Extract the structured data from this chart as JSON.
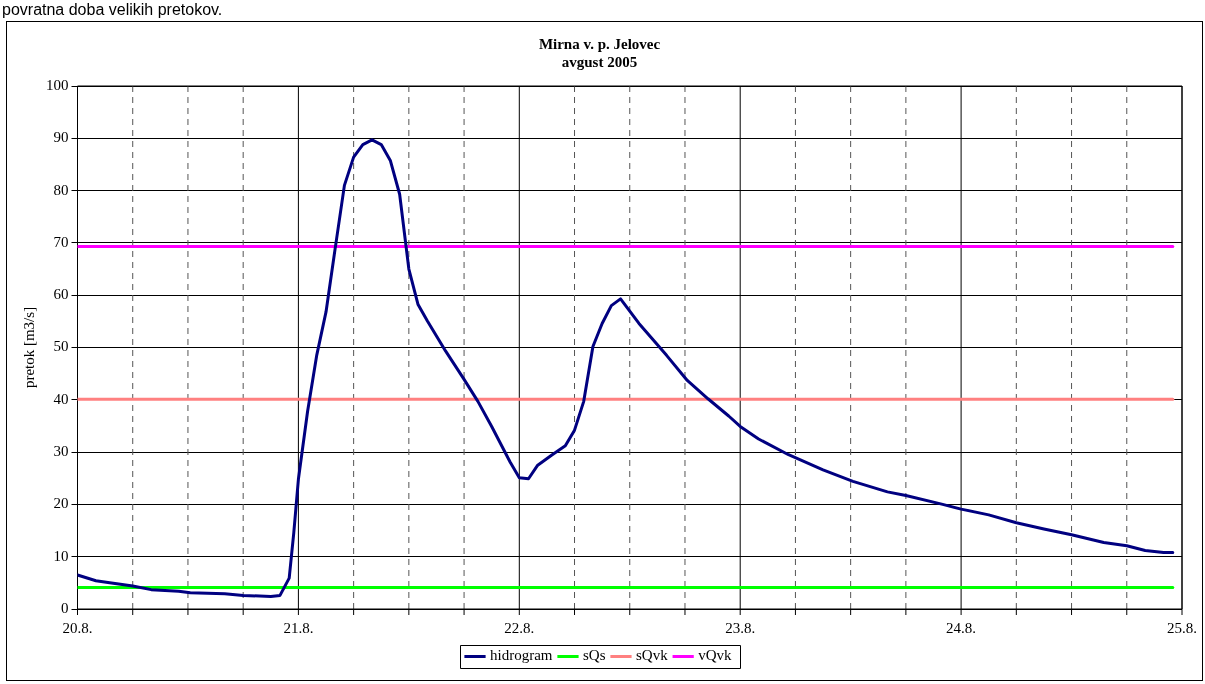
{
  "chart_data": {
    "type": "line",
    "title": "Mirna v. p. Jelovec",
    "subtitle": "avgust 2005",
    "ylabel": "pretok [m3/s]",
    "annotations": [
      "povratna doba velikih pretokov."
    ],
    "xlim": [
      "--08-20",
      "--08-25"
    ],
    "xticks": [
      {
        "value": "--08-20",
        "label": "20.8."
      },
      {
        "value": "--08-20T06:00",
        "label": null
      },
      {
        "value": "--08-20T12:00",
        "label": null
      },
      {
        "value": "--08-20T18:00",
        "label": null
      },
      {
        "value": "--08-21",
        "label": "21.8."
      },
      {
        "value": "--08-21T06:00",
        "label": null
      },
      {
        "value": "--08-21T12:00",
        "label": null
      },
      {
        "value": "--08-21T18:00",
        "label": null
      },
      {
        "value": "--08-22",
        "label": "22.8."
      },
      {
        "value": "--08-22T06:00",
        "label": null
      },
      {
        "value": "--08-22T12:00",
        "label": null
      },
      {
        "value": "--08-22T18:00",
        "label": null
      },
      {
        "value": "--08-23",
        "label": "23.8."
      },
      {
        "value": "--08-23T06:00",
        "label": null
      },
      {
        "value": "--08-23T12:00",
        "label": null
      },
      {
        "value": "--08-23T18:00",
        "label": null
      },
      {
        "value": "--08-24",
        "label": "24.8."
      },
      {
        "value": "--08-24T06:00",
        "label": null
      },
      {
        "value": "--08-24T12:00",
        "label": null
      },
      {
        "value": "--08-24T18:00",
        "label": null
      },
      {
        "value": "--08-25",
        "label": "25.8."
      }
    ],
    "ylim": [
      0,
      100
    ],
    "yticks": [
      0,
      10,
      20,
      30,
      40,
      50,
      60,
      70,
      80,
      90,
      100
    ],
    "grid": true,
    "legend": "bottom",
    "marker": "none",
    "line_style": "solid",
    "series": [
      {
        "name": "hidrogram",
        "color": "#000080",
        "x": [
          "--08-20T00:00",
          "--08-20T02:00",
          "--08-20T03:30",
          "--08-20T06:00",
          "--08-20T08:00",
          "--08-20T11:00",
          "--08-20T12:15",
          "--08-20T16:00",
          "--08-20T18:00",
          "--08-20T21:00",
          "--08-20T22:00",
          "--08-20T23:00",
          "--08-20T23:30",
          "--08-21T00:00",
          "--08-21T01:00",
          "--08-21T02:00",
          "--08-21T03:00",
          "--08-21T04:00",
          "--08-21T05:00",
          "--08-21T06:00",
          "--08-21T07:00",
          "--08-21T08:00",
          "--08-21T09:00",
          "--08-21T10:00",
          "--08-21T11:00",
          "--08-21T12:00",
          "--08-21T13:00",
          "--08-21T14:00",
          "--08-21T16:00",
          "--08-21T18:00",
          "--08-21T19:30",
          "--08-21T21:00",
          "--08-21T23:00",
          "--08-22T00:00",
          "--08-22T01:00",
          "--08-22T02:00",
          "--08-22T03:30",
          "--08-22T05:00",
          "--08-22T06:00",
          "--08-22T07:00",
          "--08-22T08:00",
          "--08-22T09:00",
          "--08-22T10:00",
          "--08-22T11:00",
          "--08-22T13:00",
          "--08-22T16:00",
          "--08-22T18:15",
          "--08-22T20:30",
          "--08-22T22:45",
          "--08-23T00:00",
          "--08-23T02:00",
          "--08-23T05:15",
          "--08-23T09:00",
          "--08-23T12:15",
          "--08-23T16:00",
          "--08-23T18:00",
          "--08-23T22:00",
          "--08-24T00:00",
          "--08-24T03:00",
          "--08-24T06:00",
          "--08-24T09:00",
          "--08-24T12:00",
          "--08-24T15:30",
          "--08-24T18:00",
          "--08-24T20:00",
          "--08-24T22:00",
          "--08-24T23:00"
        ],
        "values": [
          6.5,
          5.4,
          5.0,
          4.4,
          3.7,
          3.4,
          3.1,
          2.9,
          2.6,
          2.4,
          2.6,
          5.9,
          14.6,
          24.8,
          37.8,
          48.6,
          56.8,
          69,
          81,
          86.4,
          88.8,
          89.7,
          88.8,
          85.7,
          79.3,
          65,
          58.2,
          55.1,
          49.3,
          43.9,
          39.7,
          34.9,
          28.1,
          25.1,
          24.9,
          27.5,
          29.4,
          31.2,
          34.2,
          39.7,
          50.2,
          54.6,
          58.0,
          59.3,
          54.6,
          48.5,
          43.7,
          40.2,
          36.9,
          34.9,
          32.5,
          29.5,
          26.6,
          24.4,
          22.4,
          21.7,
          20.0,
          19.1,
          18.0,
          16.5,
          15.3,
          14.2,
          12.7,
          12.1,
          11.2,
          10.8,
          10.8
        ]
      },
      {
        "name": "sQs",
        "color": "#00ff00",
        "x": [
          "--08-20T00:00",
          "--08-24T23:00"
        ],
        "values": [
          4.1,
          4.1
        ]
      },
      {
        "name": "sQvk",
        "color": "#ff8080",
        "x": [
          "--08-20T00:00",
          "--08-24T23:00"
        ],
        "values": [
          40.1,
          40.1
        ]
      },
      {
        "name": "vQvk",
        "color": "#ff00ff",
        "x": [
          "--08-20T00:00",
          "--08-24T23:00"
        ],
        "values": [
          69.3,
          69.3
        ]
      }
    ]
  }
}
